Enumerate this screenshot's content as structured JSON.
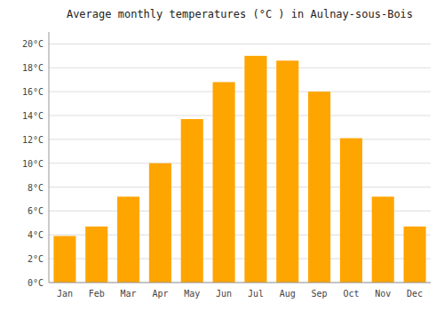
{
  "chart_data": {
    "type": "bar",
    "title": "Average monthly temperatures (°C ) in Aulnay-sous-Bois",
    "categories": [
      "Jan",
      "Feb",
      "Mar",
      "Apr",
      "May",
      "Jun",
      "Jul",
      "Aug",
      "Sep",
      "Oct",
      "Nov",
      "Dec"
    ],
    "values": [
      3.9,
      4.7,
      7.2,
      10.0,
      13.7,
      16.8,
      19.0,
      18.6,
      16.0,
      12.1,
      7.2,
      4.7
    ],
    "color": "#FFA500",
    "ylim": [
      0,
      21
    ],
    "yticks": [
      {
        "value": 0,
        "label": "0°C"
      },
      {
        "value": 2,
        "label": "2°C"
      },
      {
        "value": 4,
        "label": "4°C"
      },
      {
        "value": 6,
        "label": "6°C"
      },
      {
        "value": 8,
        "label": "8°C"
      },
      {
        "value": 10,
        "label": "10°C"
      },
      {
        "value": 12,
        "label": "12°C"
      },
      {
        "value": 14,
        "label": "14°C"
      },
      {
        "value": 16,
        "label": "16°C"
      },
      {
        "value": 18,
        "label": "18°C"
      },
      {
        "value": 20,
        "label": "20°C"
      }
    ],
    "grid": true
  }
}
